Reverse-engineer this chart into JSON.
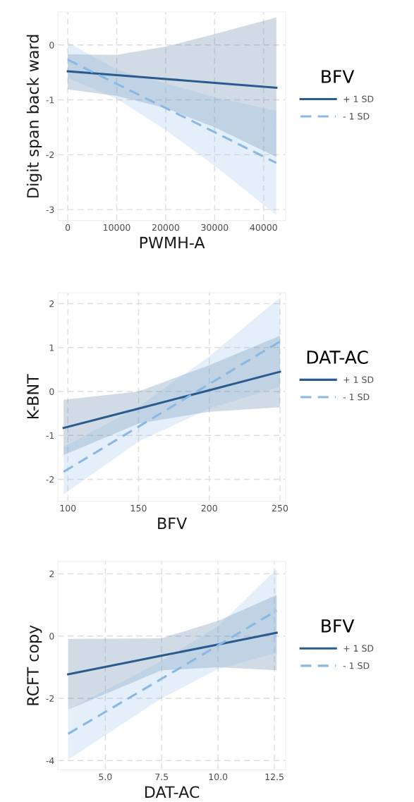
{
  "chart_data": [
    {
      "type": "line",
      "xlabel": "PWMH-A",
      "ylabel": "Digit span back ward",
      "legend_title": "BFV",
      "legend": "right",
      "grid": true,
      "marker": "none",
      "xlim": [
        -2000,
        44500
      ],
      "xticks": [
        0,
        10000,
        20000,
        30000,
        40000
      ],
      "ylim": [
        -3.2,
        0.6
      ],
      "yticks": [
        -3,
        -2,
        -1,
        0
      ],
      "series": [
        {
          "name": "+ 1 SD",
          "color": "#2b5a8c",
          "line_style": "solid",
          "x": [
            0,
            10000,
            20000,
            30000,
            42600
          ],
          "values": [
            -0.48,
            -0.55,
            -0.62,
            -0.69,
            -0.78
          ],
          "lower": [
            -0.81,
            -0.93,
            -1.15,
            -1.5,
            -2.04
          ],
          "upper": [
            -0.17,
            -0.18,
            -0.03,
            0.2,
            0.5
          ]
        },
        {
          "name": "- 1 SD",
          "color": "#89b8e3",
          "line_style": "dashed",
          "x": [
            0,
            10000,
            20000,
            30000,
            42600
          ],
          "values": [
            -0.27,
            -0.71,
            -1.15,
            -1.59,
            -2.15
          ],
          "lower": [
            -0.6,
            -0.98,
            -1.55,
            -2.2,
            -3.1
          ],
          "upper": [
            0.05,
            -0.45,
            -0.7,
            -0.95,
            -1.2
          ]
        }
      ]
    },
    {
      "type": "line",
      "xlabel": "BFV",
      "ylabel": "K-BNT",
      "legend_title": "DAT-AC",
      "legend": "right",
      "grid": true,
      "marker": "none",
      "xlim": [
        93,
        254
      ],
      "xticks": [
        100,
        150,
        200,
        250
      ],
      "ylim": [
        -2.5,
        2.25
      ],
      "yticks": [
        -2,
        -1,
        0,
        1,
        2
      ],
      "series": [
        {
          "name": "+ 1 SD",
          "color": "#2b5a8c",
          "line_style": "solid",
          "x": [
            97,
            150,
            200,
            250
          ],
          "values": [
            -0.83,
            -0.39,
            0.03,
            0.45
          ],
          "lower": [
            -1.45,
            -0.73,
            -0.46,
            -0.36
          ],
          "upper": [
            -0.19,
            0.0,
            0.6,
            1.27
          ]
        },
        {
          "name": "- 1 SD",
          "color": "#89b8e3",
          "line_style": "dashed",
          "x": [
            97,
            150,
            200,
            250
          ],
          "values": [
            -1.83,
            -0.8,
            0.17,
            1.14
          ],
          "lower": [
            -2.34,
            -1.14,
            -0.39,
            0.11
          ],
          "upper": [
            -1.26,
            -0.35,
            0.8,
            2.14
          ]
        }
      ]
    },
    {
      "type": "line",
      "xlabel": "DAT-AC",
      "ylabel": "RCFT copy",
      "legend_title": "BFV",
      "legend": "right",
      "grid": true,
      "marker": "none",
      "xlim": [
        2.9,
        13.0
      ],
      "xticks": [
        {
          "value": 5,
          "label": "5.0"
        },
        7.5,
        {
          "value": 10,
          "label": "10.0"
        },
        12.5
      ],
      "ylim": [
        -4.3,
        2.4
      ],
      "yticks": [
        -4,
        -2,
        0,
        2
      ],
      "series": [
        {
          "name": "+ 1 SD",
          "color": "#2b5a8c",
          "line_style": "solid",
          "x": [
            3.35,
            7.5,
            10,
            12.6
          ],
          "values": [
            -1.23,
            -0.63,
            -0.27,
            0.11
          ],
          "lower": [
            -2.36,
            -1.1,
            -1.0,
            -1.1
          ],
          "upper": [
            -0.09,
            -0.07,
            0.49,
            1.32
          ]
        },
        {
          "name": "- 1 SD",
          "color": "#89b8e3",
          "line_style": "dashed",
          "x": [
            3.35,
            7.5,
            10,
            12.6
          ],
          "values": [
            -3.14,
            -1.37,
            -0.3,
            0.82
          ],
          "lower": [
            -3.97,
            -2.0,
            -1.06,
            -0.54
          ],
          "upper": [
            -2.37,
            -0.8,
            0.32,
            2.16
          ]
        }
      ]
    }
  ]
}
